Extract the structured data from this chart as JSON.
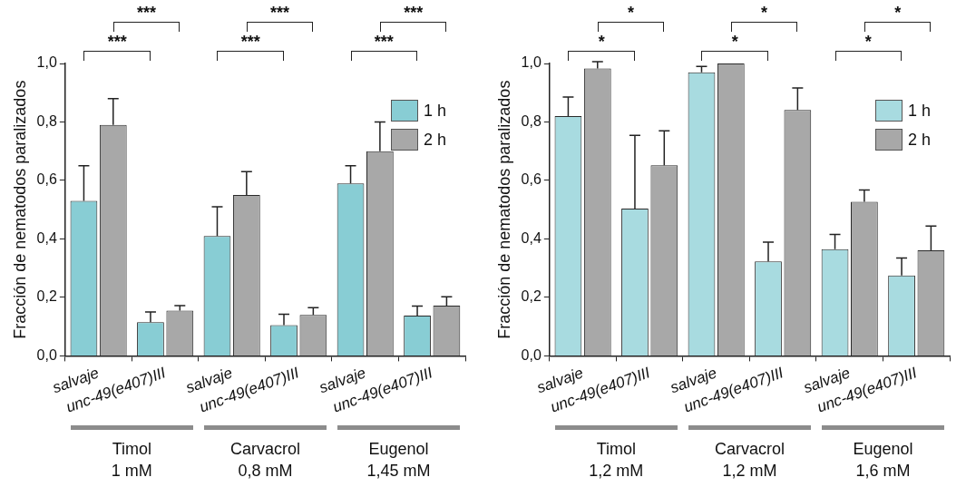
{
  "chart_data": [
    {
      "type": "bar",
      "ylabel": "Fracción de nematodos paralizados",
      "categories": [
        "salvaje",
        "unc-49(e407)III",
        "salvaje",
        "unc-49(e407)III",
        "salvaje",
        "unc-49(e407)III"
      ],
      "series": [
        {
          "name": "1 h",
          "color": "#88cdd4",
          "values": [
            0.53,
            0.115,
            0.41,
            0.105,
            0.59,
            0.138
          ],
          "errors": [
            0.12,
            0.035,
            0.1,
            0.037,
            0.06,
            0.032
          ]
        },
        {
          "name": "2 h",
          "color": "#a8a8a8",
          "values": [
            0.79,
            0.155,
            0.55,
            0.14,
            0.7,
            0.172
          ],
          "errors": [
            0.09,
            0.017,
            0.08,
            0.025,
            0.1,
            0.03
          ]
        }
      ],
      "ylim": [
        0,
        1
      ],
      "yticks": [
        {
          "value": 0,
          "label": "0,0"
        },
        {
          "value": 0.2,
          "label": "0,2"
        },
        {
          "value": 0.4,
          "label": "0,4"
        },
        {
          "value": 0.6,
          "label": "0,6"
        },
        {
          "value": 0.8,
          "label": "0,8"
        },
        {
          "value": 1,
          "label": "1,0"
        }
      ],
      "grid": false,
      "legend": "top right",
      "annotations": [
        "***",
        "***",
        "***",
        "***",
        "***",
        "***",
        "Timol\n1 mM",
        "Carvacrol\n0,8 mM",
        "Eugenol\n1,45 mM"
      ]
    },
    {
      "type": "bar",
      "ylabel": "Fracción de nematodos paralizados",
      "categories": [
        "salvaje",
        "unc-49(e407)III",
        "salvaje",
        "unc-49(e407)III",
        "salvaje",
        "unc-49(e407)III"
      ],
      "series": [
        {
          "name": "1 h",
          "color": "#a8dbe0",
          "values": [
            0.82,
            0.504,
            0.97,
            0.323,
            0.365,
            0.275
          ],
          "errors": [
            0.065,
            0.25,
            0.02,
            0.066,
            0.05,
            0.06
          ]
        },
        {
          "name": "2 h",
          "color": "#a8a8a8",
          "values": [
            0.983,
            0.652,
            1.0,
            0.841,
            0.527,
            0.361
          ],
          "errors": [
            0.023,
            0.118,
            null,
            0.075,
            0.04,
            0.083
          ]
        }
      ],
      "ylim": [
        0,
        1
      ],
      "yticks": [
        {
          "value": 0,
          "label": "0,0"
        },
        {
          "value": 0.2,
          "label": "0,2"
        },
        {
          "value": 0.4,
          "label": "0,4"
        },
        {
          "value": 0.6,
          "label": "0,6"
        },
        {
          "value": 0.8,
          "label": "0,8"
        },
        {
          "value": 1,
          "label": "1,0"
        }
      ],
      "grid": false,
      "legend": "top right",
      "annotations": [
        "*",
        "*",
        "*",
        "*",
        "*",
        "*",
        "Timol\n1,2 mM",
        "Carvacrol\n1,2 mM",
        "Eugenol\n1,6 mM"
      ]
    }
  ]
}
